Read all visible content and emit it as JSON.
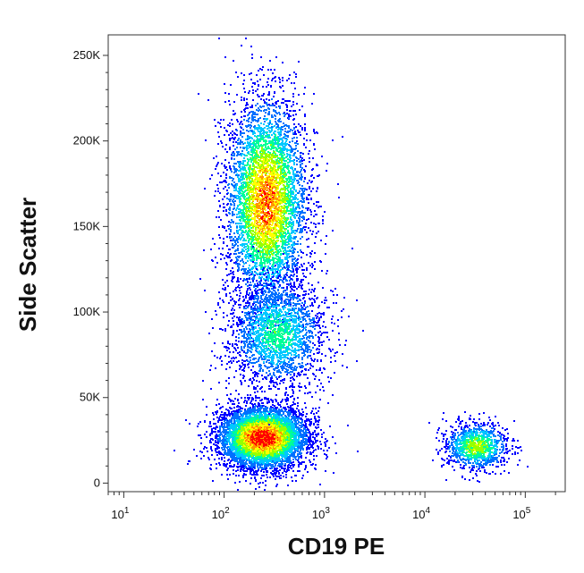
{
  "chart_data": {
    "type": "scatter",
    "subtype": "flow-cytometry-density-dot-plot",
    "title": "",
    "xlabel": "CD19 PE",
    "ylabel": "Side Scatter",
    "x_scale": "log",
    "xlim": [
      7,
      250000
    ],
    "ylim": [
      -5000,
      262000
    ],
    "x_ticks": [
      {
        "value": 10,
        "base": "10",
        "exp": "1"
      },
      {
        "value": 100,
        "base": "10",
        "exp": "2"
      },
      {
        "value": 1000,
        "base": "10",
        "exp": "3"
      },
      {
        "value": 10000,
        "base": "10",
        "exp": "4"
      },
      {
        "value": 100000,
        "base": "10",
        "exp": "5"
      }
    ],
    "y_ticks": [
      {
        "value": 0,
        "label": "0"
      },
      {
        "value": 50000,
        "label": "50K"
      },
      {
        "value": 100000,
        "label": "100K"
      },
      {
        "value": 150000,
        "label": "150K"
      },
      {
        "value": 200000,
        "label": "200K"
      },
      {
        "value": 250000,
        "label": "250K"
      }
    ],
    "color_scale": [
      "#0000ff",
      "#0070ff",
      "#00c8ff",
      "#00ff96",
      "#96ff00",
      "#ffff00",
      "#ff9600",
      "#ff0000"
    ],
    "populations": [
      {
        "center_x": 240,
        "center_y": 27000,
        "sd_logx": 0.22,
        "sd_y": 9000,
        "points": 6000,
        "peak_density": 1.0
      },
      {
        "center_x": 260,
        "center_y": 165000,
        "sd_logx": 0.2,
        "sd_y": 30000,
        "points": 8500,
        "peak_density": 0.85
      },
      {
        "center_x": 330,
        "center_y": 88000,
        "sd_logx": 0.24,
        "sd_y": 16000,
        "points": 2200,
        "peak_density": 0.45
      },
      {
        "center_x": 32000,
        "center_y": 22000,
        "sd_logx": 0.16,
        "sd_y": 7000,
        "points": 1100,
        "peak_density": 0.6
      }
    ],
    "grid": false,
    "legend": "none"
  }
}
